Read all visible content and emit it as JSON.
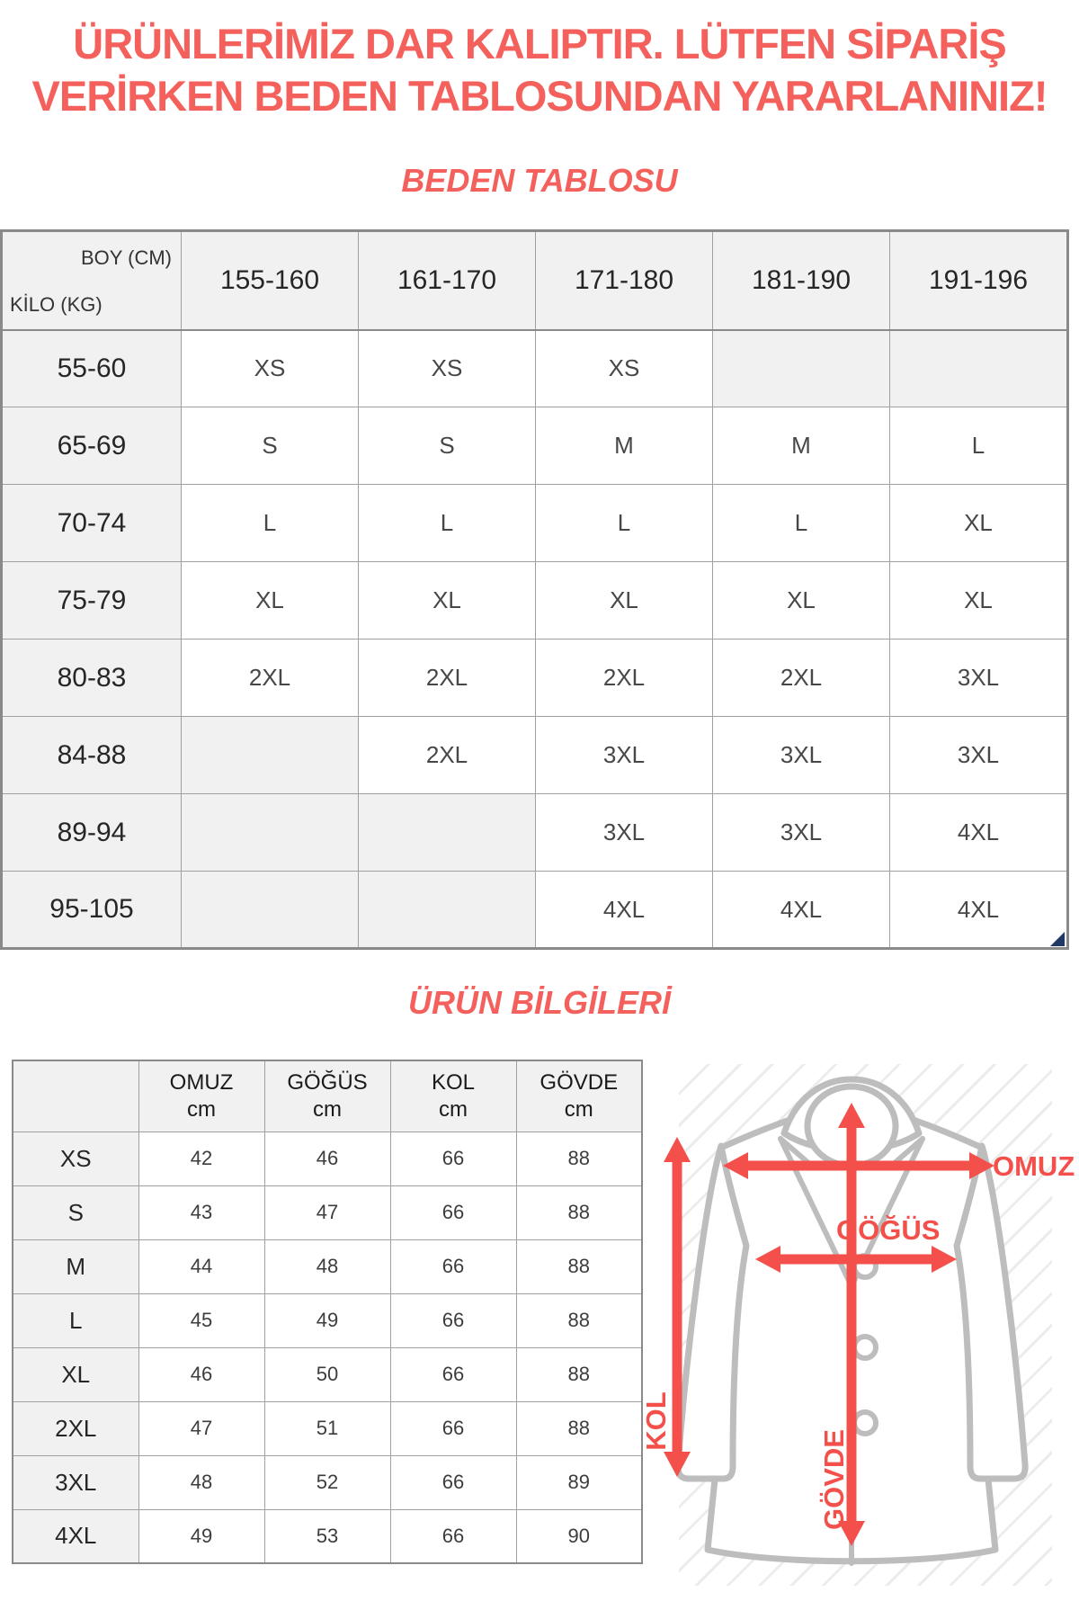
{
  "colors": {
    "heading_red": "#F4615C",
    "arrow_red": "#F4504B",
    "cell_gray": "#F1F1F1",
    "border_gray": "#8A8A8A",
    "jacket_gray": "#BDBDBD",
    "corner_blue": "#1F3864"
  },
  "warning": {
    "line1": "ÜRÜNLERİMİZ DAR KALIPTIR. LÜTFEN SİPARİŞ",
    "line2": "VERİRKEN BEDEN TABLOSUNDAN YARARLANINIZ!"
  },
  "size_table": {
    "title": "BEDEN TABLOSU",
    "corner": {
      "top_right": "BOY (CM)",
      "bottom_left": "KİLO (KG)"
    },
    "columns": [
      "155-160",
      "161-170",
      "171-180",
      "181-190",
      "191-196"
    ],
    "rows": [
      {
        "label": "55-60",
        "cells": [
          "XS",
          "XS",
          "XS",
          "",
          ""
        ]
      },
      {
        "label": "65-69",
        "cells": [
          "S",
          "S",
          "M",
          "M",
          "L"
        ]
      },
      {
        "label": "70-74",
        "cells": [
          "L",
          "L",
          "L",
          "L",
          "XL"
        ]
      },
      {
        "label": "75-79",
        "cells": [
          "XL",
          "XL",
          "XL",
          "XL",
          "XL"
        ]
      },
      {
        "label": "80-83",
        "cells": [
          "2XL",
          "2XL",
          "2XL",
          "2XL",
          "3XL"
        ]
      },
      {
        "label": "84-88",
        "cells": [
          "",
          "2XL",
          "3XL",
          "3XL",
          "3XL"
        ]
      },
      {
        "label": "89-94",
        "cells": [
          "",
          "",
          "3XL",
          "3XL",
          "4XL"
        ]
      },
      {
        "label": "95-105",
        "cells": [
          "",
          "",
          "4XL",
          "4XL",
          "4XL"
        ]
      }
    ]
  },
  "product_info": {
    "title": "ÜRÜN BİLGİLERİ",
    "columns": [
      {
        "name": "OMUZ",
        "unit": "cm"
      },
      {
        "name": "GÖĞÜS",
        "unit": "cm"
      },
      {
        "name": "KOL",
        "unit": "cm"
      },
      {
        "name": "GÖVDE",
        "unit": "cm"
      }
    ],
    "rows": [
      {
        "size": "XS",
        "values": [
          42,
          46,
          66,
          88
        ]
      },
      {
        "size": "S",
        "values": [
          43,
          47,
          66,
          88
        ]
      },
      {
        "size": "M",
        "values": [
          44,
          48,
          66,
          88
        ]
      },
      {
        "size": "L",
        "values": [
          45,
          49,
          66,
          88
        ]
      },
      {
        "size": "XL",
        "values": [
          46,
          50,
          66,
          88
        ]
      },
      {
        "size": "2XL",
        "values": [
          47,
          51,
          66,
          88
        ]
      },
      {
        "size": "3XL",
        "values": [
          48,
          52,
          66,
          89
        ]
      },
      {
        "size": "4XL",
        "values": [
          49,
          53,
          66,
          90
        ]
      }
    ]
  },
  "diagram": {
    "labels": {
      "omuz": "OMUZ",
      "gogus": "GÖĞÜS",
      "kol": "KOL",
      "govde": "GÖVDE"
    }
  }
}
